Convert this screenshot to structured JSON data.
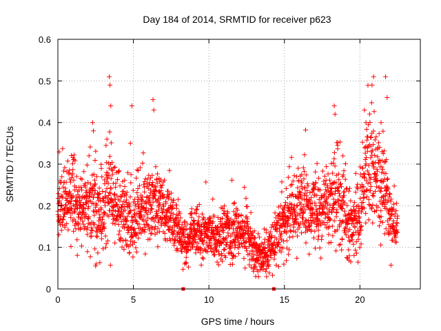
{
  "chart_data": {
    "type": "scatter",
    "title": "Day 184 of 2014, SRMTID for receiver p623",
    "xlabel": "GPS time / hours",
    "ylabel": "SRMTID / TECUs",
    "xlim": [
      0,
      24
    ],
    "ylim": [
      0,
      0.6
    ],
    "xticks": [
      0,
      5,
      10,
      15,
      20
    ],
    "xtick_labels": [
      "0",
      "5",
      "10",
      "15",
      "20"
    ],
    "yticks": [
      0,
      0.1,
      0.2,
      0.3,
      0.4,
      0.5,
      0.6
    ],
    "ytick_labels": [
      "0",
      "0.1",
      "0.2",
      "0.3",
      "0.4",
      "0.5",
      "0.6"
    ],
    "grid": true,
    "marker": "+",
    "series_color": "#ff0000",
    "envelope": [
      [
        0.0,
        0.2,
        0.05
      ],
      [
        0.5,
        0.21,
        0.05
      ],
      [
        1.0,
        0.22,
        0.06
      ],
      [
        1.5,
        0.2,
        0.06
      ],
      [
        2.0,
        0.21,
        0.07
      ],
      [
        2.5,
        0.2,
        0.07
      ],
      [
        3.0,
        0.18,
        0.07
      ],
      [
        3.3,
        0.24,
        0.09
      ],
      [
        3.6,
        0.22,
        0.07
      ],
      [
        4.0,
        0.19,
        0.06
      ],
      [
        4.5,
        0.17,
        0.06
      ],
      [
        5.0,
        0.16,
        0.06
      ],
      [
        5.5,
        0.19,
        0.06
      ],
      [
        6.0,
        0.2,
        0.06
      ],
      [
        6.5,
        0.21,
        0.06
      ],
      [
        7.0,
        0.19,
        0.05
      ],
      [
        7.5,
        0.17,
        0.05
      ],
      [
        8.0,
        0.14,
        0.04
      ],
      [
        8.5,
        0.1,
        0.03
      ],
      [
        9.0,
        0.15,
        0.04
      ],
      [
        9.5,
        0.12,
        0.04
      ],
      [
        10.0,
        0.13,
        0.04
      ],
      [
        10.5,
        0.12,
        0.04
      ],
      [
        11.0,
        0.14,
        0.04
      ],
      [
        11.5,
        0.13,
        0.04
      ],
      [
        12.0,
        0.14,
        0.04
      ],
      [
        12.5,
        0.13,
        0.04
      ],
      [
        13.0,
        0.09,
        0.03
      ],
      [
        13.5,
        0.08,
        0.03
      ],
      [
        14.0,
        0.09,
        0.03
      ],
      [
        14.5,
        0.13,
        0.05
      ],
      [
        15.0,
        0.17,
        0.05
      ],
      [
        15.5,
        0.18,
        0.05
      ],
      [
        16.0,
        0.21,
        0.06
      ],
      [
        16.5,
        0.19,
        0.05
      ],
      [
        17.0,
        0.18,
        0.05
      ],
      [
        17.5,
        0.2,
        0.06
      ],
      [
        18.0,
        0.21,
        0.07
      ],
      [
        18.5,
        0.23,
        0.08
      ],
      [
        19.0,
        0.17,
        0.06
      ],
      [
        19.5,
        0.15,
        0.05
      ],
      [
        20.0,
        0.19,
        0.07
      ],
      [
        20.5,
        0.3,
        0.08
      ],
      [
        21.0,
        0.28,
        0.08
      ],
      [
        21.5,
        0.25,
        0.08
      ],
      [
        22.0,
        0.18,
        0.06
      ],
      [
        22.4,
        0.15,
        0.04
      ]
    ],
    "outliers": [
      [
        3.4,
        0.51
      ],
      [
        3.45,
        0.49
      ],
      [
        3.5,
        0.44
      ],
      [
        4.9,
        0.44
      ],
      [
        6.3,
        0.455
      ],
      [
        6.35,
        0.43
      ],
      [
        2.3,
        0.4
      ],
      [
        2.35,
        0.38
      ],
      [
        18.3,
        0.44
      ],
      [
        18.35,
        0.42
      ],
      [
        20.3,
        0.43
      ],
      [
        20.9,
        0.51
      ],
      [
        20.8,
        0.49
      ],
      [
        21.7,
        0.51
      ],
      [
        21.8,
        0.46
      ],
      [
        21.4,
        0.4
      ],
      [
        20.4,
        0.4
      ],
      [
        4.8,
        0.35
      ],
      [
        13.1,
        0.03
      ],
      [
        12.4,
        0.05
      ],
      [
        8.4,
        0.06
      ],
      [
        2.5,
        0.055
      ]
    ],
    "baseline_markers": [
      8.3,
      14.3
    ],
    "point_count": 2400,
    "x_end": 22.5
  }
}
